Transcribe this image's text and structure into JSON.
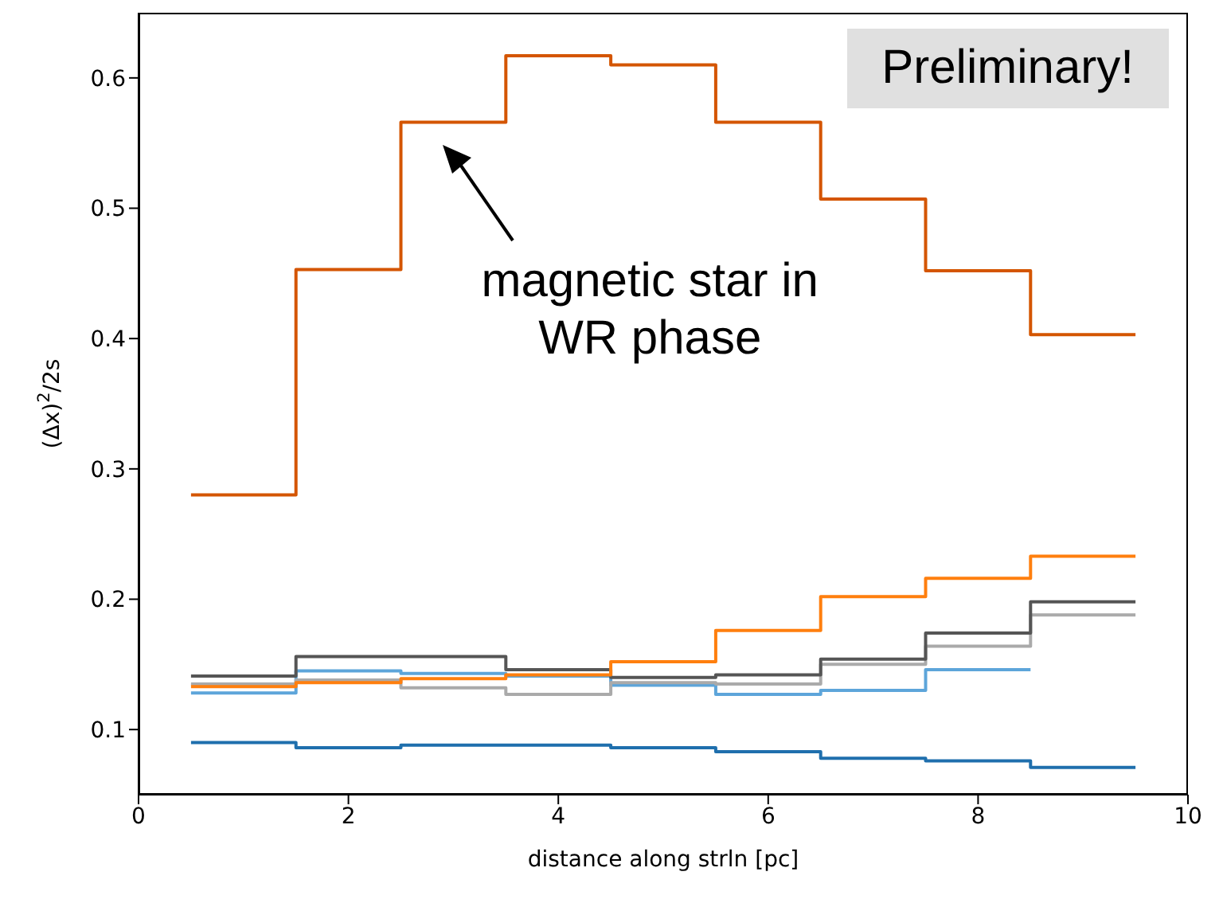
{
  "chart_data": {
    "type": "step",
    "xlabel": "distance along strln [pc]",
    "ylabel": "(Δx)$^{2}$/2s",
    "x": [
      0.5,
      1.5,
      2.5,
      3.5,
      4.5,
      5.5,
      6.5,
      7.5,
      8.5,
      9.5
    ],
    "xlim": [
      0,
      10
    ],
    "xticks": [
      0,
      2,
      4,
      6,
      8,
      10
    ],
    "ylim": [
      0.05,
      0.65
    ],
    "yticks": [
      0.1,
      0.2,
      0.3,
      0.4,
      0.5,
      0.6
    ],
    "line_style": "solid",
    "marker": "none",
    "series": [
      {
        "color": "#1f6fad",
        "values": [
          0.09,
          0.086,
          0.088,
          0.088,
          0.086,
          0.083,
          0.078,
          0.076,
          0.071,
          0.071
        ]
      },
      {
        "color": "#5da5da",
        "values": [
          0.128,
          0.145,
          0.143,
          0.141,
          0.134,
          0.127,
          0.13,
          0.146,
          0.146,
          null
        ]
      },
      {
        "color": "#aaaaaa",
        "values": [
          0.135,
          0.138,
          0.132,
          0.127,
          0.136,
          0.135,
          0.15,
          0.164,
          0.188,
          0.188
        ]
      },
      {
        "color": "#555555",
        "values": [
          0.141,
          0.156,
          0.156,
          0.146,
          0.14,
          0.142,
          0.154,
          0.174,
          0.198,
          0.198
        ]
      },
      {
        "color": "#ff7f0e",
        "values": [
          0.133,
          0.136,
          0.139,
          0.142,
          0.152,
          0.176,
          0.202,
          0.216,
          0.233,
          0.233
        ]
      },
      {
        "color": "#d45500",
        "values": [
          0.28,
          0.453,
          0.566,
          0.617,
          0.61,
          0.566,
          0.507,
          0.452,
          0.403,
          0.403
        ]
      }
    ],
    "annotations": [
      "Preliminary!",
      "magnetic star in\nWR phase"
    ]
  }
}
